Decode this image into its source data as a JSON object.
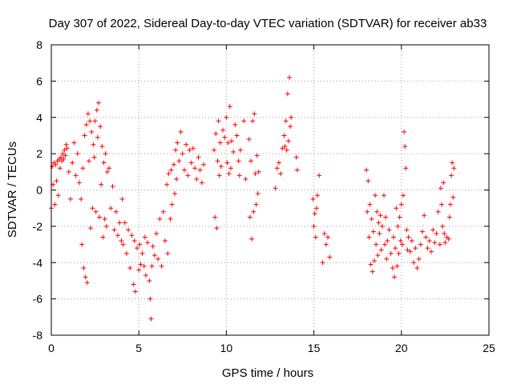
{
  "chart_data": {
    "type": "scatter",
    "title": "Day 307 of 2022, Sidereal Day-to-day VTEC variation (SDTVAR) for receiver ab33",
    "xlabel": "GPS time / hours",
    "ylabel": "SDTVAR / TECUs",
    "xlim": [
      0,
      25
    ],
    "ylim": [
      -8,
      8
    ],
    "xticks": [
      0,
      5,
      10,
      15,
      20,
      25
    ],
    "yticks": [
      -8,
      -6,
      -4,
      -2,
      0,
      2,
      4,
      6,
      8
    ],
    "grid": true,
    "marker": "+",
    "color": "#ff0000",
    "series": [
      {
        "name": "SDTVAR",
        "points": [
          [
            0.0,
            -1.0
          ],
          [
            0.05,
            1.3
          ],
          [
            0.1,
            0.3
          ],
          [
            0.15,
            1.5
          ],
          [
            0.2,
            -0.8
          ],
          [
            0.25,
            1.4
          ],
          [
            0.3,
            0.5
          ],
          [
            0.35,
            1.6
          ],
          [
            0.4,
            -0.3
          ],
          [
            0.45,
            1.7
          ],
          [
            0.5,
            1.2
          ],
          [
            0.55,
            1.8
          ],
          [
            0.6,
            1.6
          ],
          [
            0.65,
            2.0
          ],
          [
            0.7,
            1.7
          ],
          [
            0.75,
            2.2
          ],
          [
            0.8,
            1.9
          ],
          [
            0.85,
            2.5
          ],
          [
            0.9,
            2.3
          ],
          [
            1.0,
            1.0
          ],
          [
            1.1,
            -0.5
          ],
          [
            1.2,
            1.5
          ],
          [
            1.3,
            2.6
          ],
          [
            1.4,
            0.8
          ],
          [
            1.5,
            2.0
          ],
          [
            1.6,
            0.4
          ],
          [
            1.7,
            -0.5
          ],
          [
            1.75,
            -3.0
          ],
          [
            1.8,
            1.2
          ],
          [
            1.85,
            -4.3
          ],
          [
            1.9,
            3.0
          ],
          [
            1.95,
            -4.8
          ],
          [
            2.0,
            3.6
          ],
          [
            2.05,
            -5.1
          ],
          [
            2.1,
            4.2
          ],
          [
            2.15,
            1.6
          ],
          [
            2.2,
            3.8
          ],
          [
            2.25,
            -2.1
          ],
          [
            2.3,
            3.2
          ],
          [
            2.35,
            -1.0
          ],
          [
            2.4,
            2.5
          ],
          [
            2.45,
            1.8
          ],
          [
            2.5,
            3.8
          ],
          [
            2.55,
            -1.2
          ],
          [
            2.6,
            4.4
          ],
          [
            2.65,
            2.9
          ],
          [
            2.7,
            4.8
          ],
          [
            2.75,
            -1.5
          ],
          [
            2.8,
            3.5
          ],
          [
            2.85,
            0.3
          ],
          [
            2.9,
            2.4
          ],
          [
            2.95,
            -2.6
          ],
          [
            3.0,
            1.5
          ],
          [
            3.05,
            -1.6
          ],
          [
            3.1,
            2.0
          ],
          [
            3.15,
            -2.0
          ],
          [
            3.2,
            1.0
          ],
          [
            3.3,
            1.2
          ],
          [
            3.4,
            -1.0
          ],
          [
            3.5,
            0.2
          ],
          [
            3.6,
            -2.2
          ],
          [
            3.7,
            -1.2
          ],
          [
            3.8,
            -2.5
          ],
          [
            3.9,
            -1.8
          ],
          [
            4.0,
            -2.8
          ],
          [
            4.05,
            -0.5
          ],
          [
            4.1,
            -3.0
          ],
          [
            4.2,
            -1.8
          ],
          [
            4.3,
            -3.5
          ],
          [
            4.4,
            -2.2
          ],
          [
            4.5,
            -4.3
          ],
          [
            4.6,
            -2.5
          ],
          [
            4.7,
            -5.2
          ],
          [
            4.75,
            -2.8
          ],
          [
            4.8,
            -5.6
          ],
          [
            4.9,
            -3.2
          ],
          [
            5.0,
            -4.4
          ],
          [
            5.05,
            -3.0
          ],
          [
            5.1,
            -4.1
          ],
          [
            5.2,
            -3.5
          ],
          [
            5.3,
            -4.2
          ],
          [
            5.35,
            -2.6
          ],
          [
            5.4,
            -4.7
          ],
          [
            5.5,
            -2.9
          ],
          [
            5.6,
            -5.0
          ],
          [
            5.65,
            -6.0
          ],
          [
            5.7,
            -7.1
          ],
          [
            5.75,
            -4.2
          ],
          [
            5.8,
            -3.1
          ],
          [
            5.9,
            -3.6
          ],
          [
            6.0,
            -2.4
          ],
          [
            6.1,
            -3.8
          ],
          [
            6.2,
            -1.6
          ],
          [
            6.3,
            -4.2
          ],
          [
            6.4,
            -1.2
          ],
          [
            6.5,
            -2.8
          ],
          [
            6.6,
            0.3
          ],
          [
            6.65,
            -3.5
          ],
          [
            6.7,
            0.9
          ],
          [
            6.8,
            -1.6
          ],
          [
            6.85,
            1.1
          ],
          [
            6.9,
            -0.8
          ],
          [
            7.0,
            1.4
          ],
          [
            7.05,
            -0.2
          ],
          [
            7.1,
            2.2
          ],
          [
            7.15,
            0.6
          ],
          [
            7.2,
            2.6
          ],
          [
            7.3,
            1.6
          ],
          [
            7.4,
            3.2
          ],
          [
            7.5,
            2.0
          ],
          [
            7.6,
            1.1
          ],
          [
            7.7,
            2.5
          ],
          [
            7.8,
            0.8
          ],
          [
            7.9,
            2.2
          ],
          [
            8.0,
            1.5
          ],
          [
            8.1,
            2.3
          ],
          [
            8.2,
            1.2
          ],
          [
            8.3,
            0.6
          ],
          [
            8.4,
            1.8
          ],
          [
            8.5,
            1.1
          ],
          [
            8.6,
            0.4
          ],
          [
            8.7,
            1.4
          ],
          [
            9.3,
            2.2
          ],
          [
            9.35,
            -1.5
          ],
          [
            9.4,
            3.1
          ],
          [
            9.45,
            -2.1
          ],
          [
            9.5,
            1.6
          ],
          [
            9.55,
            3.8
          ],
          [
            9.6,
            0.8
          ],
          [
            9.65,
            2.6
          ],
          [
            9.7,
            1.3
          ],
          [
            9.8,
            3.3
          ],
          [
            9.9,
            2.9
          ],
          [
            10.0,
            4.0
          ],
          [
            10.05,
            1.5
          ],
          [
            10.1,
            2.6
          ],
          [
            10.15,
            0.9
          ],
          [
            10.2,
            4.6
          ],
          [
            10.25,
            1.2
          ],
          [
            10.3,
            2.7
          ],
          [
            10.4,
            2.1
          ],
          [
            10.5,
            3.6
          ],
          [
            10.6,
            3.0
          ],
          [
            10.7,
            1.6
          ],
          [
            10.75,
            0.8
          ],
          [
            10.8,
            2.2
          ],
          [
            11.0,
            3.8
          ],
          [
            11.1,
            0.6
          ],
          [
            11.3,
            2.8
          ],
          [
            11.35,
            -1.5
          ],
          [
            11.4,
            1.6
          ],
          [
            11.45,
            -2.7
          ],
          [
            11.5,
            3.8
          ],
          [
            11.55,
            -1.2
          ],
          [
            11.6,
            4.2
          ],
          [
            11.65,
            0.9
          ],
          [
            11.7,
            -0.8
          ],
          [
            11.75,
            1.9
          ],
          [
            11.8,
            -0.2
          ],
          [
            11.85,
            1.0
          ],
          [
            12.8,
            0.1
          ],
          [
            12.9,
            1.2
          ],
          [
            13.0,
            1.5
          ],
          [
            13.1,
            0.9
          ],
          [
            13.2,
            2.3
          ],
          [
            13.3,
            3.0
          ],
          [
            13.35,
            2.4
          ],
          [
            13.4,
            3.8
          ],
          [
            13.45,
            2.2
          ],
          [
            13.5,
            5.3
          ],
          [
            13.55,
            2.7
          ],
          [
            13.6,
            6.2
          ],
          [
            13.65,
            3.5
          ],
          [
            13.7,
            4.0
          ],
          [
            14.0,
            1.8
          ],
          [
            14.05,
            1.1
          ],
          [
            14.95,
            -0.5
          ],
          [
            15.0,
            -2.0
          ],
          [
            15.05,
            -1.3
          ],
          [
            15.1,
            -2.6
          ],
          [
            15.15,
            -1.0
          ],
          [
            15.2,
            -0.3
          ],
          [
            15.3,
            0.8
          ],
          [
            15.5,
            -4.0
          ],
          [
            15.6,
            -2.4
          ],
          [
            15.7,
            -3.0
          ],
          [
            15.8,
            -2.6
          ],
          [
            15.9,
            -3.7
          ],
          [
            18.0,
            1.1
          ],
          [
            18.05,
            -1.2
          ],
          [
            18.1,
            0.5
          ],
          [
            18.15,
            -2.6
          ],
          [
            18.2,
            -0.8
          ],
          [
            18.25,
            -4.1
          ],
          [
            18.3,
            -1.6
          ],
          [
            18.35,
            -4.5
          ],
          [
            18.4,
            -2.3
          ],
          [
            18.45,
            -3.9
          ],
          [
            18.5,
            -0.3
          ],
          [
            18.55,
            -3.0
          ],
          [
            18.6,
            -1.2
          ],
          [
            18.65,
            -3.6
          ],
          [
            18.7,
            -1.8
          ],
          [
            18.75,
            -2.4
          ],
          [
            18.8,
            -1.4
          ],
          [
            18.85,
            -3.3
          ],
          [
            18.9,
            -2.0
          ],
          [
            19.0,
            -0.3
          ],
          [
            19.05,
            -3.0
          ],
          [
            19.1,
            -1.5
          ],
          [
            19.15,
            -3.8
          ],
          [
            19.2,
            -2.8
          ],
          [
            19.3,
            -2.2
          ],
          [
            19.4,
            -3.5
          ],
          [
            19.5,
            -4.3
          ],
          [
            19.55,
            -2.6
          ],
          [
            19.6,
            -4.8
          ],
          [
            19.65,
            -3.2
          ],
          [
            19.7,
            -1.0
          ],
          [
            19.75,
            -4.2
          ],
          [
            19.8,
            -2.0
          ],
          [
            19.85,
            -3.5
          ],
          [
            19.9,
            -1.5
          ],
          [
            19.95,
            -2.8
          ],
          [
            20.0,
            -0.8
          ],
          [
            20.05,
            -3.0
          ],
          [
            20.1,
            -0.3
          ],
          [
            20.15,
            3.2
          ],
          [
            20.2,
            2.4
          ],
          [
            20.25,
            1.2
          ],
          [
            20.3,
            -2.2
          ],
          [
            20.35,
            -3.3
          ],
          [
            20.4,
            -2.6
          ],
          [
            20.5,
            -3.4
          ],
          [
            20.6,
            -2.8
          ],
          [
            20.7,
            -4.0
          ],
          [
            20.8,
            -3.2
          ],
          [
            20.9,
            -4.3
          ],
          [
            21.0,
            -3.8
          ],
          [
            21.1,
            -3.0
          ],
          [
            21.2,
            -2.3
          ],
          [
            21.3,
            -1.4
          ],
          [
            21.4,
            -2.6
          ],
          [
            21.5,
            -3.2
          ],
          [
            21.6,
            -2.8
          ],
          [
            21.7,
            -3.4
          ],
          [
            21.8,
            -2.2
          ],
          [
            21.9,
            -2.9
          ],
          [
            22.0,
            -2.4
          ],
          [
            22.1,
            -1.2
          ],
          [
            22.2,
            -3.0
          ],
          [
            22.25,
            0.1
          ],
          [
            22.3,
            -0.8
          ],
          [
            22.35,
            -2.0
          ],
          [
            22.4,
            0.4
          ],
          [
            22.45,
            -2.4
          ],
          [
            22.5,
            -2.9
          ],
          [
            22.6,
            -2.6
          ],
          [
            22.7,
            -2.7
          ],
          [
            22.75,
            -1.5
          ],
          [
            22.8,
            -0.8
          ],
          [
            22.85,
            0.8
          ],
          [
            22.9,
            1.5
          ],
          [
            22.95,
            -0.4
          ],
          [
            23.0,
            1.2
          ]
        ]
      }
    ]
  }
}
